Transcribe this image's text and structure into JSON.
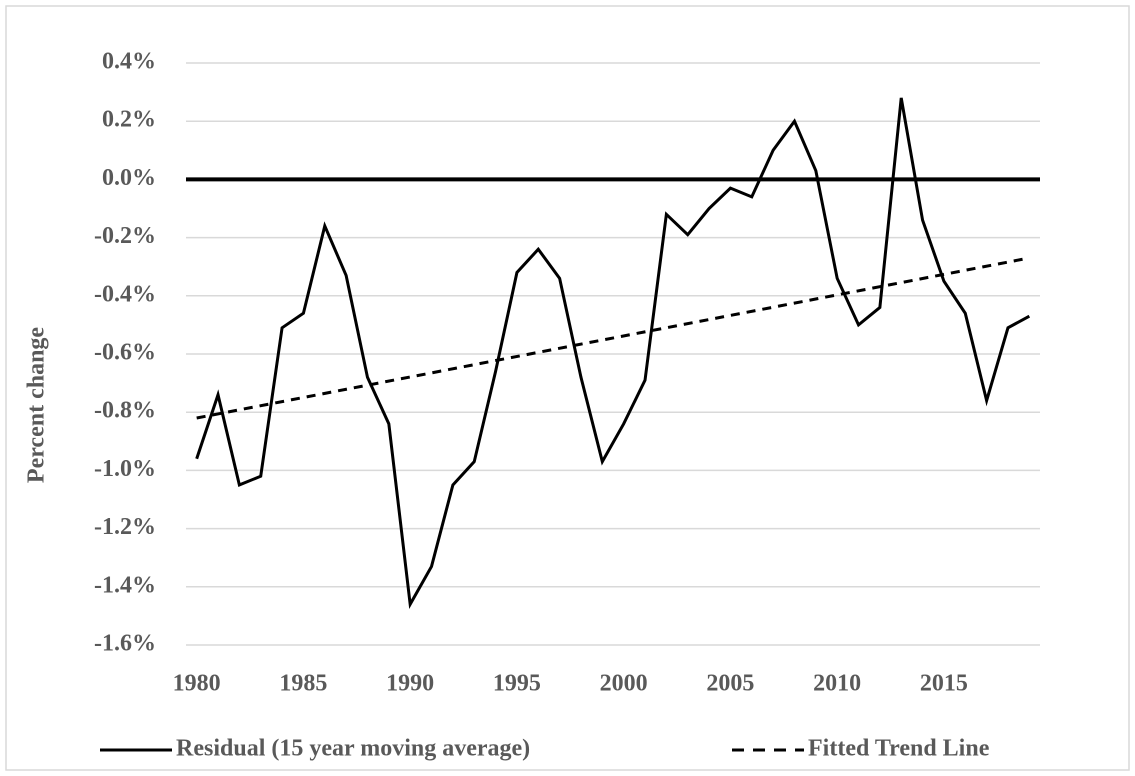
{
  "chart_data": {
    "type": "line",
    "y_label": "Percent change",
    "x": [
      1980,
      1981,
      1982,
      1983,
      1984,
      1985,
      1986,
      1987,
      1988,
      1989,
      1990,
      1991,
      1992,
      1993,
      1994,
      1995,
      1996,
      1997,
      1998,
      1999,
      2000,
      2001,
      2002,
      2003,
      2004,
      2005,
      2006,
      2007,
      2008,
      2009,
      2010,
      2011,
      2012,
      2013,
      2014,
      2015,
      2016,
      2017,
      2018,
      2019
    ],
    "series": [
      {
        "name": "Residual (15 year moving average)",
        "color": "#000000",
        "dash": false,
        "values": [
          -0.96,
          -0.74,
          -1.05,
          -1.02,
          -0.51,
          -0.46,
          -0.16,
          -0.33,
          -0.68,
          -0.84,
          -1.46,
          -1.33,
          -1.05,
          -0.97,
          -0.66,
          -0.32,
          -0.24,
          -0.34,
          -0.68,
          -0.97,
          -0.84,
          -0.69,
          -0.12,
          -0.19,
          -0.1,
          -0.03,
          -0.06,
          0.1,
          0.2,
          0.03,
          -0.34,
          -0.5,
          -0.44,
          0.28,
          -0.14,
          -0.35,
          -0.46,
          -0.76,
          -0.51,
          -0.47
        ]
      },
      {
        "name": "Fitted Trend Line",
        "color": "#000000",
        "dash": true,
        "x": [
          1980,
          2019
        ],
        "values": [
          -0.82,
          -0.27
        ]
      }
    ],
    "xlim": [
      1979.5,
      2019.5
    ],
    "xticks": [
      1980,
      1985,
      1990,
      1995,
      2000,
      2005,
      2010,
      2015
    ],
    "ylim": [
      -1.6,
      0.4
    ],
    "yticks": [
      {
        "value": -1.6,
        "label": "-1.6%"
      },
      {
        "value": -1.4,
        "label": "-1.4%"
      },
      {
        "value": -1.2,
        "label": "-1.2%"
      },
      {
        "value": -1.0,
        "label": "-1.0%"
      },
      {
        "value": -0.8,
        "label": "-0.8%"
      },
      {
        "value": -0.6,
        "label": "-0.6%"
      },
      {
        "value": -0.4,
        "label": "-0.4%"
      },
      {
        "value": -0.2,
        "label": "-0.2%"
      },
      {
        "value": 0.0,
        "label": "0.0%"
      },
      {
        "value": 0.2,
        "label": "0.2%"
      },
      {
        "value": 0.4,
        "label": "0.4%"
      }
    ],
    "grid": true,
    "legend": "bottom"
  }
}
